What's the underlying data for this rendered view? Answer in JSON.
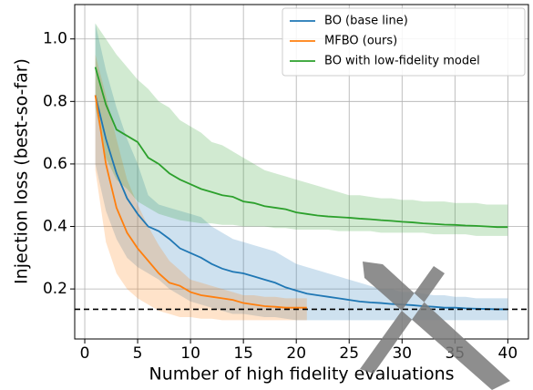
{
  "chart_data": {
    "type": "line",
    "xlabel": "Number of high fidelity evaluations",
    "ylabel": "Injection loss (best-so-far)",
    "x": [
      1,
      2,
      3,
      4,
      5,
      6,
      7,
      8,
      9,
      10,
      11,
      12,
      13,
      14,
      15,
      16,
      17,
      18,
      19,
      20,
      21,
      22,
      23,
      24,
      25,
      26,
      27,
      28,
      29,
      30,
      31,
      32,
      33,
      34,
      35,
      36,
      37,
      38,
      39,
      40
    ],
    "xlim": [
      -0.95,
      41.95
    ],
    "xticks": [
      0,
      5,
      10,
      15,
      20,
      25,
      30,
      35,
      40
    ],
    "ylim": [
      0.04,
      1.11
    ],
    "yticks": [
      0.2,
      0.4,
      0.6,
      0.8,
      {
        "value": 1,
        "label": "1.0"
      }
    ],
    "grid": true,
    "legend": "upper right",
    "hline": 0.135,
    "series": [
      {
        "name": "BO (base line)",
        "color": "#1f77b4",
        "values": [
          0.82,
          0.68,
          0.57,
          0.49,
          0.44,
          0.4,
          0.385,
          0.36,
          0.33,
          0.315,
          0.3,
          0.28,
          0.265,
          0.255,
          0.25,
          0.24,
          0.23,
          0.22,
          0.205,
          0.195,
          0.185,
          0.18,
          0.175,
          0.17,
          0.165,
          0.16,
          0.157,
          0.155,
          0.152,
          0.15,
          0.148,
          0.145,
          0.143,
          0.14,
          0.14,
          0.138,
          0.137,
          0.136,
          0.135,
          0.135
        ],
        "upper": [
          1.05,
          0.9,
          0.78,
          0.68,
          0.6,
          0.5,
          0.47,
          0.46,
          0.45,
          0.44,
          0.43,
          0.4,
          0.38,
          0.36,
          0.35,
          0.34,
          0.33,
          0.32,
          0.3,
          0.28,
          0.27,
          0.26,
          0.25,
          0.24,
          0.23,
          0.22,
          0.21,
          0.2,
          0.2,
          0.19,
          0.19,
          0.185,
          0.18,
          0.18,
          0.175,
          0.175,
          0.17,
          0.17,
          0.17,
          0.17
        ],
        "lower": [
          0.6,
          0.45,
          0.36,
          0.3,
          0.27,
          0.25,
          0.23,
          0.2,
          0.18,
          0.16,
          0.15,
          0.14,
          0.13,
          0.12,
          0.12,
          0.115,
          0.11,
          0.11,
          0.105,
          0.1,
          0.1,
          0.1,
          0.1,
          0.1,
          0.1,
          0.1,
          0.1,
          0.1,
          0.1,
          0.1,
          0.1,
          0.1,
          0.1,
          0.1,
          0.1,
          0.1,
          0.1,
          0.1,
          0.1,
          0.1
        ]
      },
      {
        "name": "MFBO (ours)",
        "color": "#ff7f0e",
        "values": [
          0.82,
          0.6,
          0.46,
          0.38,
          0.33,
          0.29,
          0.25,
          0.22,
          0.21,
          0.19,
          0.18,
          0.175,
          0.17,
          0.165,
          0.155,
          0.15,
          0.145,
          0.143,
          0.14,
          0.14,
          0.14,
          null,
          null,
          null,
          null,
          null,
          null,
          null,
          null,
          null,
          null,
          null,
          null,
          null,
          null,
          null,
          null,
          null,
          null,
          null
        ],
        "upper": [
          0.95,
          0.82,
          0.68,
          0.55,
          0.47,
          0.4,
          0.34,
          0.29,
          0.26,
          0.23,
          0.22,
          0.21,
          0.2,
          0.19,
          0.18,
          0.18,
          0.175,
          0.175,
          0.17,
          0.17,
          0.17,
          null,
          null,
          null,
          null,
          null,
          null,
          null,
          null,
          null,
          null,
          null,
          null,
          null,
          null,
          null,
          null,
          null,
          null,
          null
        ],
        "lower": [
          0.58,
          0.35,
          0.25,
          0.2,
          0.17,
          0.15,
          0.13,
          0.12,
          0.11,
          0.11,
          0.105,
          0.105,
          0.1,
          0.1,
          0.1,
          0.1,
          0.1,
          0.1,
          0.1,
          0.1,
          0.1,
          null,
          null,
          null,
          null,
          null,
          null,
          null,
          null,
          null,
          null,
          null,
          null,
          null,
          null,
          null,
          null,
          null,
          null,
          null
        ]
      },
      {
        "name": "BO with low-fidelity model",
        "color": "#2ca02c",
        "values": [
          0.91,
          0.79,
          0.71,
          0.69,
          0.67,
          0.62,
          0.6,
          0.57,
          0.55,
          0.535,
          0.52,
          0.51,
          0.5,
          0.495,
          0.48,
          0.475,
          0.465,
          0.46,
          0.455,
          0.445,
          0.44,
          0.435,
          0.432,
          0.43,
          0.428,
          0.425,
          0.423,
          0.42,
          0.418,
          0.415,
          0.413,
          0.41,
          0.408,
          0.406,
          0.405,
          0.403,
          0.402,
          0.4,
          0.398,
          0.398
        ],
        "upper": [
          1.05,
          1.0,
          0.95,
          0.91,
          0.87,
          0.84,
          0.8,
          0.78,
          0.74,
          0.72,
          0.7,
          0.67,
          0.66,
          0.64,
          0.62,
          0.6,
          0.58,
          0.57,
          0.56,
          0.55,
          0.54,
          0.53,
          0.52,
          0.51,
          0.5,
          0.5,
          0.495,
          0.49,
          0.49,
          0.485,
          0.485,
          0.48,
          0.48,
          0.48,
          0.475,
          0.475,
          0.475,
          0.47,
          0.47,
          0.47
        ],
        "lower": [
          0.78,
          0.62,
          0.55,
          0.52,
          0.48,
          0.46,
          0.44,
          0.43,
          0.42,
          0.415,
          0.41,
          0.41,
          0.405,
          0.405,
          0.4,
          0.4,
          0.4,
          0.395,
          0.395,
          0.39,
          0.39,
          0.39,
          0.39,
          0.385,
          0.385,
          0.385,
          0.385,
          0.38,
          0.38,
          0.38,
          0.38,
          0.38,
          0.375,
          0.375,
          0.375,
          0.375,
          0.37,
          0.37,
          0.37,
          0.37
        ]
      }
    ]
  }
}
